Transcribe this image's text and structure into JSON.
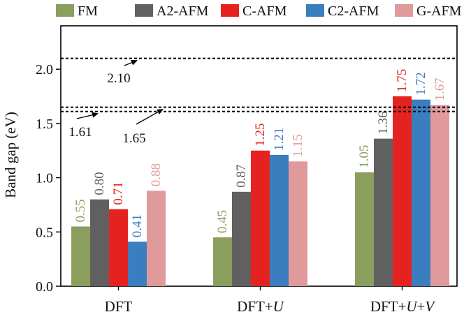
{
  "chart_data": {
    "type": "bar",
    "title": "",
    "xlabel": "",
    "ylabel": "Band gap (eV)",
    "ylim": [
      0.0,
      2.4
    ],
    "yticks": [
      {
        "value": 0.0,
        "label": "0.0"
      },
      {
        "value": 0.5,
        "label": "0.5"
      },
      {
        "value": 1.0,
        "label": "1.0"
      },
      {
        "value": 1.5,
        "label": "1.5"
      },
      {
        "value": 2.0,
        "label": "2.0"
      }
    ],
    "categories": [
      {
        "pre": "DFT",
        "parts": []
      },
      {
        "pre": "DFT+",
        "parts": [
          {
            "t": "U",
            "i": true
          }
        ]
      },
      {
        "pre": "DFT+",
        "parts": [
          {
            "t": "U",
            "i": true
          },
          {
            "t": "+",
            "i": false
          },
          {
            "t": "V",
            "i": true
          }
        ]
      }
    ],
    "series": [
      {
        "name": "FM",
        "color": "#8a9e5e",
        "values": [
          0.55,
          0.45,
          1.05
        ],
        "labels": [
          "0.55",
          "0.45",
          "1.05"
        ]
      },
      {
        "name": "A2-AFM",
        "color": "#606060",
        "values": [
          0.8,
          0.87,
          1.36
        ],
        "labels": [
          "0.80",
          "0.87",
          "1.36"
        ]
      },
      {
        "name": "C-AFM",
        "color": "#e5221f",
        "values": [
          0.71,
          1.25,
          1.75
        ],
        "labels": [
          "0.71",
          "1.25",
          "1.75"
        ]
      },
      {
        "name": "C2-AFM",
        "color": "#3a7ebf",
        "values": [
          0.41,
          1.21,
          1.72
        ],
        "labels": [
          "0.41",
          "1.21",
          "1.72"
        ]
      },
      {
        "name": "G-AFM",
        "color": "#e09a9c",
        "values": [
          0.88,
          1.15,
          1.67
        ],
        "labels": [
          "0.88",
          "1.15",
          "1.67"
        ]
      }
    ],
    "reference_lines": [
      {
        "value": 2.1,
        "label": "2.10"
      },
      {
        "value": 1.65,
        "label": "1.65"
      },
      {
        "value": 1.61,
        "label": "1.61"
      }
    ],
    "legend": {
      "position": "top"
    }
  }
}
